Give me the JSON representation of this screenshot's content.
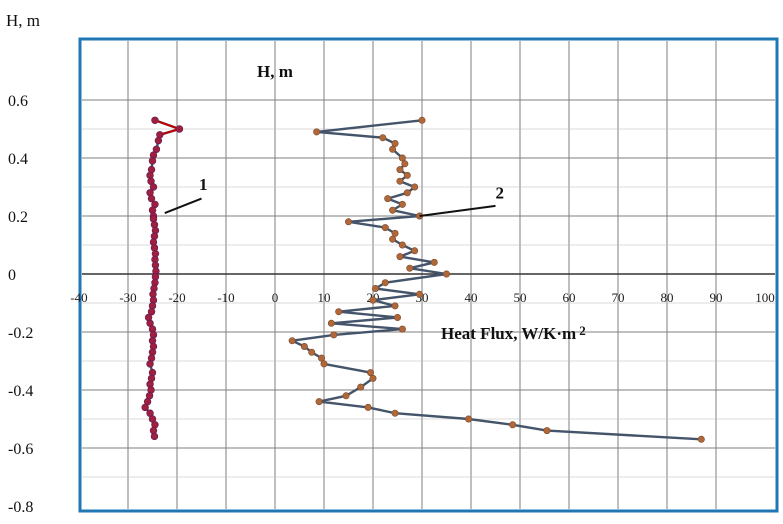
{
  "chart_data": {
    "type": "line",
    "ylabel_outer": "H, m",
    "ylabel_inner": "H, m",
    "xlabel": "Heat Flux,  W/K·m",
    "xlabel_sup": "2",
    "xlim": [
      -40,
      100
    ],
    "ylim": [
      -0.8,
      0.6
    ],
    "x_ticks": [
      "-40",
      "-30",
      "-20",
      "-10",
      "0",
      "10",
      "20",
      "30",
      "40",
      "50",
      "60",
      "70",
      "80",
      "90",
      "100"
    ],
    "y_ticks": [
      "0.6",
      "0.4",
      "0.2",
      "0",
      "-0.2",
      "-0.4",
      "-0.6",
      "-0.8"
    ],
    "grid": true,
    "colors": {
      "frame": "#1f77b4",
      "grid": "#7f7f7f",
      "series_line": "#44546a",
      "series1_line": "#c00000",
      "series1_marker": "#a01f3c",
      "series2_marker": "#b0683a"
    },
    "series": [
      {
        "name": "1",
        "points": [
          [
            -24.5,
            0.53
          ],
          [
            -19.5,
            0.5
          ],
          [
            -23.5,
            0.48
          ],
          [
            -23.8,
            0.46
          ],
          [
            -24.2,
            0.43
          ],
          [
            -24.8,
            0.41
          ],
          [
            -25.0,
            0.39
          ],
          [
            -25.2,
            0.36
          ],
          [
            -25.5,
            0.34
          ],
          [
            -25.3,
            0.32
          ],
          [
            -24.8,
            0.3
          ],
          [
            -25.5,
            0.28
          ],
          [
            -25.2,
            0.26
          ],
          [
            -24.5,
            0.24
          ],
          [
            -25.0,
            0.22
          ],
          [
            -24.8,
            0.2
          ],
          [
            -24.8,
            0.19
          ],
          [
            -24.6,
            0.17
          ],
          [
            -24.4,
            0.15
          ],
          [
            -24.6,
            0.13
          ],
          [
            -24.8,
            0.11
          ],
          [
            -24.6,
            0.09
          ],
          [
            -24.4,
            0.07
          ],
          [
            -24.5,
            0.05
          ],
          [
            -24.4,
            0.03
          ],
          [
            -24.3,
            0.01
          ],
          [
            -24.4,
            -0.01
          ],
          [
            -24.5,
            -0.03
          ],
          [
            -24.7,
            -0.05
          ],
          [
            -24.9,
            -0.07
          ],
          [
            -24.8,
            -0.09
          ],
          [
            -25.0,
            -0.11
          ],
          [
            -25.2,
            -0.13
          ],
          [
            -25.8,
            -0.15
          ],
          [
            -25.5,
            -0.17
          ],
          [
            -25.0,
            -0.19
          ],
          [
            -24.8,
            -0.21
          ],
          [
            -25.0,
            -0.23
          ],
          [
            -24.8,
            -0.25
          ],
          [
            -25.0,
            -0.27
          ],
          [
            -25.2,
            -0.29
          ],
          [
            -25.5,
            -0.31
          ],
          [
            -25.0,
            -0.34
          ],
          [
            -25.2,
            -0.36
          ],
          [
            -25.5,
            -0.38
          ],
          [
            -25.3,
            -0.4
          ],
          [
            -25.6,
            -0.42
          ],
          [
            -26.0,
            -0.44
          ],
          [
            -26.5,
            -0.46
          ],
          [
            -25.5,
            -0.48
          ],
          [
            -25.0,
            -0.5
          ],
          [
            -24.5,
            -0.52
          ],
          [
            -24.8,
            -0.54
          ],
          [
            -24.6,
            -0.56
          ]
        ]
      },
      {
        "name": "2",
        "points": [
          [
            30.0,
            0.53
          ],
          [
            8.5,
            0.49
          ],
          [
            22.0,
            0.47
          ],
          [
            24.5,
            0.45
          ],
          [
            24.0,
            0.43
          ],
          [
            26.0,
            0.4
          ],
          [
            26.5,
            0.38
          ],
          [
            25.5,
            0.36
          ],
          [
            27.0,
            0.34
          ],
          [
            25.5,
            0.32
          ],
          [
            28.5,
            0.3
          ],
          [
            27.0,
            0.28
          ],
          [
            23.0,
            0.26
          ],
          [
            26.0,
            0.24
          ],
          [
            24.0,
            0.22
          ],
          [
            29.5,
            0.2
          ],
          [
            15.0,
            0.18
          ],
          [
            22.5,
            0.16
          ],
          [
            24.5,
            0.14
          ],
          [
            24.0,
            0.12
          ],
          [
            26.0,
            0.1
          ],
          [
            28.5,
            0.08
          ],
          [
            25.5,
            0.06
          ],
          [
            32.5,
            0.04
          ],
          [
            27.5,
            0.02
          ],
          [
            35.0,
            0.0
          ],
          [
            22.5,
            -0.03
          ],
          [
            20.5,
            -0.05
          ],
          [
            29.5,
            -0.07
          ],
          [
            20.0,
            -0.09
          ],
          [
            24.5,
            -0.11
          ],
          [
            13.0,
            -0.13
          ],
          [
            25.0,
            -0.15
          ],
          [
            11.5,
            -0.17
          ],
          [
            26.0,
            -0.19
          ],
          [
            12.0,
            -0.21
          ],
          [
            3.5,
            -0.23
          ],
          [
            6.0,
            -0.25
          ],
          [
            7.5,
            -0.27
          ],
          [
            9.5,
            -0.29
          ],
          [
            10.0,
            -0.31
          ],
          [
            19.5,
            -0.34
          ],
          [
            20.0,
            -0.36
          ],
          [
            17.5,
            -0.39
          ],
          [
            14.5,
            -0.42
          ],
          [
            9.0,
            -0.44
          ],
          [
            19.0,
            -0.46
          ],
          [
            24.5,
            -0.48
          ],
          [
            39.5,
            -0.5
          ],
          [
            48.5,
            -0.52
          ],
          [
            55.5,
            -0.54
          ],
          [
            87.0,
            -0.57
          ]
        ]
      }
    ],
    "annotations": [
      {
        "text": "1",
        "line_from": [
          -22.5,
          0.21
        ],
        "line_to": [
          -15.0,
          0.26
        ],
        "label_at": [
          -15.5,
          0.29
        ]
      },
      {
        "text": "2",
        "line_from": [
          29.5,
          0.2
        ],
        "line_to": [
          45.0,
          0.235
        ],
        "label_at": [
          45.0,
          0.26
        ]
      }
    ]
  }
}
